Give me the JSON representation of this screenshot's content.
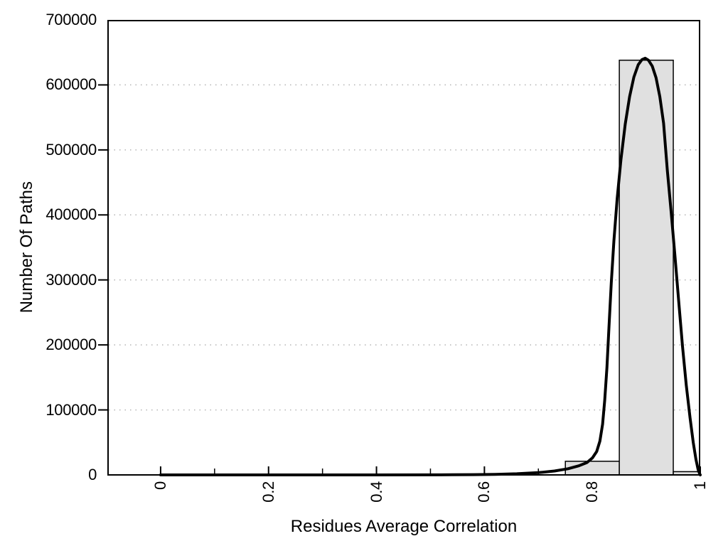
{
  "chart_data": {
    "type": "histogram-with-fit-curve",
    "title": "",
    "xlabel": "Residues Average Correlation",
    "ylabel": "Number Of Paths",
    "xlim": [
      -0.0987,
      1.0
    ],
    "ylim": [
      0,
      700000
    ],
    "grid": "horizontal-dotted",
    "legend": "none",
    "x_major_ticks": [
      0,
      0.2,
      0.4,
      0.6,
      0.8,
      1
    ],
    "x_major_tick_labels": [
      "0",
      "0.2",
      "0.4",
      "0.6",
      "0.8",
      "1"
    ],
    "x_minor_ticks": [
      0.1,
      0.3,
      0.5,
      0.7,
      0.9
    ],
    "y_ticks": [
      0,
      100000,
      200000,
      300000,
      400000,
      500000,
      600000,
      700000
    ],
    "y_tick_labels": [
      "0",
      "100000",
      "200000",
      "300000",
      "400000",
      "500000",
      "600000",
      "700000"
    ],
    "y_gridline_values": [
      100000,
      200000,
      300000,
      400000,
      500000,
      600000
    ],
    "bars": [
      {
        "x0": 0.75,
        "x1": 0.85,
        "count": 21000
      },
      {
        "x0": 0.85,
        "x1": 0.95,
        "count": 638000
      },
      {
        "x0": 0.95,
        "x1": 1.0,
        "count": 5000
      }
    ],
    "curve_peak": {
      "x": 0.898,
      "count": 641000
    },
    "curve": [
      [
        0.0,
        0
      ],
      [
        0.2,
        0
      ],
      [
        0.4,
        0
      ],
      [
        0.52,
        100
      ],
      [
        0.58,
        400
      ],
      [
        0.62,
        900
      ],
      [
        0.66,
        1800
      ],
      [
        0.7,
        3500
      ],
      [
        0.73,
        6000
      ],
      [
        0.755,
        9500
      ],
      [
        0.775,
        14000
      ],
      [
        0.79,
        19000
      ],
      [
        0.8,
        26000
      ],
      [
        0.808,
        36000
      ],
      [
        0.814,
        52000
      ],
      [
        0.819,
        78000
      ],
      [
        0.823,
        115000
      ],
      [
        0.827,
        165000
      ],
      [
        0.831,
        230000
      ],
      [
        0.835,
        295000
      ],
      [
        0.84,
        360000
      ],
      [
        0.846,
        425000
      ],
      [
        0.853,
        485000
      ],
      [
        0.861,
        540000
      ],
      [
        0.869,
        582000
      ],
      [
        0.877,
        612000
      ],
      [
        0.885,
        631000
      ],
      [
        0.892,
        639000
      ],
      [
        0.898,
        641000
      ],
      [
        0.904,
        638000
      ],
      [
        0.911,
        629000
      ],
      [
        0.918,
        611000
      ],
      [
        0.925,
        582000
      ],
      [
        0.932,
        541000
      ],
      [
        0.939,
        468000
      ],
      [
        0.946,
        405000
      ],
      [
        0.953,
        338000
      ],
      [
        0.96,
        268000
      ],
      [
        0.967,
        198000
      ],
      [
        0.974,
        138000
      ],
      [
        0.981,
        88000
      ],
      [
        0.987,
        50000
      ],
      [
        0.992,
        24000
      ],
      [
        0.996,
        8000
      ],
      [
        0.999,
        1500
      ],
      [
        1.0,
        0
      ]
    ],
    "colors": {
      "bar_fill": "#e0e0e0",
      "bar_stroke": "#000000",
      "curve": "#000000",
      "axis": "#000000",
      "grid": "#b4b4b4",
      "background": "#ffffff"
    }
  }
}
